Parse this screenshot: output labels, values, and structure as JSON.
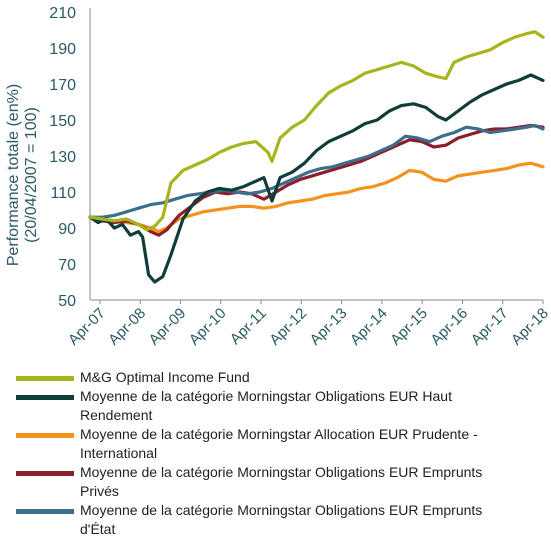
{
  "chart_data": {
    "type": "line",
    "ylabel_lines": [
      "Performance totale (en%)",
      "(20/04/2007 = 100)"
    ],
    "y_ticks": [
      50,
      70,
      90,
      110,
      130,
      150,
      170,
      190,
      210
    ],
    "ylim": [
      50,
      210
    ],
    "x_ticks": [
      "Apr-07",
      "Apr-08",
      "Apr-09",
      "Apr-10",
      "Apr-11",
      "Apr-12",
      "Apr-13",
      "Apr-14",
      "Apr-15",
      "Apr-16",
      "Apr-17",
      "Apr-18"
    ],
    "xlim": [
      2007.3,
      2018.5
    ],
    "grid": false,
    "legend_position": "bottom",
    "series": [
      {
        "name": "M&G Optimal Income Fund",
        "color": "#a7b41c",
        "x": [
          2007.3,
          2007.6,
          2007.9,
          2008.2,
          2008.5,
          2008.7,
          2008.9,
          2009.1,
          2009.3,
          2009.6,
          2009.9,
          2010.2,
          2010.5,
          2010.8,
          2011.1,
          2011.4,
          2011.7,
          2011.8,
          2012.0,
          2012.3,
          2012.6,
          2012.9,
          2013.2,
          2013.5,
          2013.8,
          2014.1,
          2014.4,
          2014.7,
          2015.0,
          2015.3,
          2015.6,
          2015.9,
          2016.1,
          2016.3,
          2016.6,
          2016.9,
          2017.2,
          2017.5,
          2017.8,
          2018.1,
          2018.3,
          2018.5
        ],
        "y": [
          96,
          95,
          94,
          95,
          92,
          89,
          91,
          96,
          115,
          122,
          125,
          128,
          132,
          135,
          137,
          138,
          132,
          127,
          140,
          146,
          150,
          158,
          165,
          169,
          172,
          176,
          178,
          180,
          182,
          180,
          176,
          174,
          173,
          182,
          185,
          187,
          189,
          193,
          196,
          198,
          199,
          196
        ]
      },
      {
        "name": "Moyenne de la catégorie Morningstar Obligations EUR Haut Rendement",
        "color": "#0e3d3a",
        "x": [
          2007.3,
          2007.5,
          2007.7,
          2007.9,
          2008.1,
          2008.3,
          2008.5,
          2008.6,
          2008.75,
          2008.9,
          2009.1,
          2009.3,
          2009.6,
          2009.9,
          2010.2,
          2010.5,
          2010.8,
          2011.1,
          2011.4,
          2011.6,
          2011.8,
          2012.0,
          2012.3,
          2012.6,
          2012.9,
          2013.2,
          2013.5,
          2013.8,
          2014.1,
          2014.4,
          2014.7,
          2015.0,
          2015.3,
          2015.6,
          2015.9,
          2016.1,
          2016.4,
          2016.7,
          2017.0,
          2017.3,
          2017.6,
          2017.9,
          2018.2,
          2018.5
        ],
        "y": [
          96,
          93,
          95,
          90,
          92,
          86,
          88,
          85,
          64,
          60,
          63,
          75,
          95,
          105,
          110,
          112,
          111,
          113,
          116,
          118,
          105,
          118,
          121,
          126,
          133,
          138,
          141,
          144,
          148,
          150,
          155,
          158,
          159,
          157,
          152,
          150,
          155,
          160,
          164,
          167,
          170,
          172,
          175,
          172
        ]
      },
      {
        "name": "Moyenne de la catégorie Morningstar Allocation EUR Prudente - International",
        "color": "#f3931d",
        "x": [
          2007.3,
          2007.6,
          2007.9,
          2008.2,
          2008.5,
          2008.8,
          2009.0,
          2009.2,
          2009.5,
          2009.8,
          2010.1,
          2010.4,
          2010.7,
          2011.0,
          2011.3,
          2011.6,
          2011.9,
          2012.2,
          2012.5,
          2012.8,
          2013.1,
          2013.4,
          2013.7,
          2014.0,
          2014.3,
          2014.6,
          2014.9,
          2015.2,
          2015.5,
          2015.8,
          2016.1,
          2016.4,
          2016.7,
          2017.0,
          2017.3,
          2017.6,
          2017.9,
          2018.2,
          2018.5
        ],
        "y": [
          96,
          95,
          94,
          93,
          92,
          90,
          88,
          90,
          95,
          97,
          99,
          100,
          101,
          102,
          102,
          101,
          102,
          104,
          105,
          106,
          108,
          109,
          110,
          112,
          113,
          115,
          118,
          122,
          121,
          117,
          116,
          119,
          120,
          121,
          122,
          123,
          125,
          126,
          124
        ]
      },
      {
        "name": "Moyenne de la catégorie Morningstar Obligations EUR Emprunts Privés",
        "color": "#8b1f2b",
        "x": [
          2007.3,
          2007.6,
          2007.9,
          2008.2,
          2008.5,
          2008.8,
          2009.0,
          2009.2,
          2009.5,
          2009.8,
          2010.1,
          2010.4,
          2010.7,
          2011.0,
          2011.3,
          2011.6,
          2011.9,
          2012.2,
          2012.5,
          2012.8,
          2013.1,
          2013.4,
          2013.7,
          2014.0,
          2014.3,
          2014.6,
          2014.9,
          2015.2,
          2015.5,
          2015.8,
          2016.1,
          2016.4,
          2016.7,
          2017.0,
          2017.3,
          2017.6,
          2017.9,
          2018.2,
          2018.5
        ],
        "y": [
          96,
          94,
          93,
          94,
          92,
          88,
          86,
          89,
          97,
          102,
          107,
          110,
          109,
          110,
          109,
          106,
          110,
          114,
          117,
          119,
          121,
          123,
          125,
          127,
          130,
          133,
          136,
          139,
          138,
          135,
          136,
          140,
          142,
          144,
          145,
          145,
          146,
          147,
          146
        ]
      },
      {
        "name": "Moyenne de la catégorie Morningstar Obligations EUR Emprunts d'État",
        "color": "#3d6e8c",
        "x": [
          2007.3,
          2007.6,
          2007.9,
          2008.2,
          2008.5,
          2008.8,
          2009.1,
          2009.4,
          2009.7,
          2010.0,
          2010.3,
          2010.6,
          2010.9,
          2011.2,
          2011.5,
          2011.8,
          2012.1,
          2012.4,
          2012.7,
          2013.0,
          2013.3,
          2013.6,
          2013.9,
          2014.2,
          2014.5,
          2014.8,
          2015.1,
          2015.4,
          2015.7,
          2016.0,
          2016.3,
          2016.6,
          2016.9,
          2017.2,
          2017.5,
          2017.8,
          2018.1,
          2018.3,
          2018.5
        ],
        "y": [
          96,
          96,
          97,
          99,
          101,
          103,
          104,
          106,
          108,
          109,
          110,
          111,
          110,
          109,
          110,
          112,
          115,
          118,
          121,
          123,
          124,
          126,
          128,
          130,
          133,
          136,
          141,
          140,
          138,
          141,
          143,
          146,
          145,
          143,
          144,
          145,
          146,
          147,
          145
        ]
      }
    ]
  },
  "legend": {
    "items": [
      {
        "lines": [
          "M&G Optimal Income Fund"
        ],
        "color": "#a7b41c"
      },
      {
        "lines": [
          "Moyenne de la catégorie Morningstar Obligations EUR Haut",
          "Rendement"
        ],
        "color": "#0e3d3a"
      },
      {
        "lines": [
          "Moyenne de la catégorie Morningstar Allocation EUR Prudente -",
          "International"
        ],
        "color": "#f3931d"
      },
      {
        "lines": [
          "Moyenne de la catégorie Morningstar Obligations EUR Emprunts",
          "Privés"
        ],
        "color": "#8b1f2b"
      },
      {
        "lines": [
          "Moyenne de la catégorie Morningstar Obligations EUR Emprunts",
          "d'État"
        ],
        "color": "#3d6e8c"
      }
    ]
  }
}
